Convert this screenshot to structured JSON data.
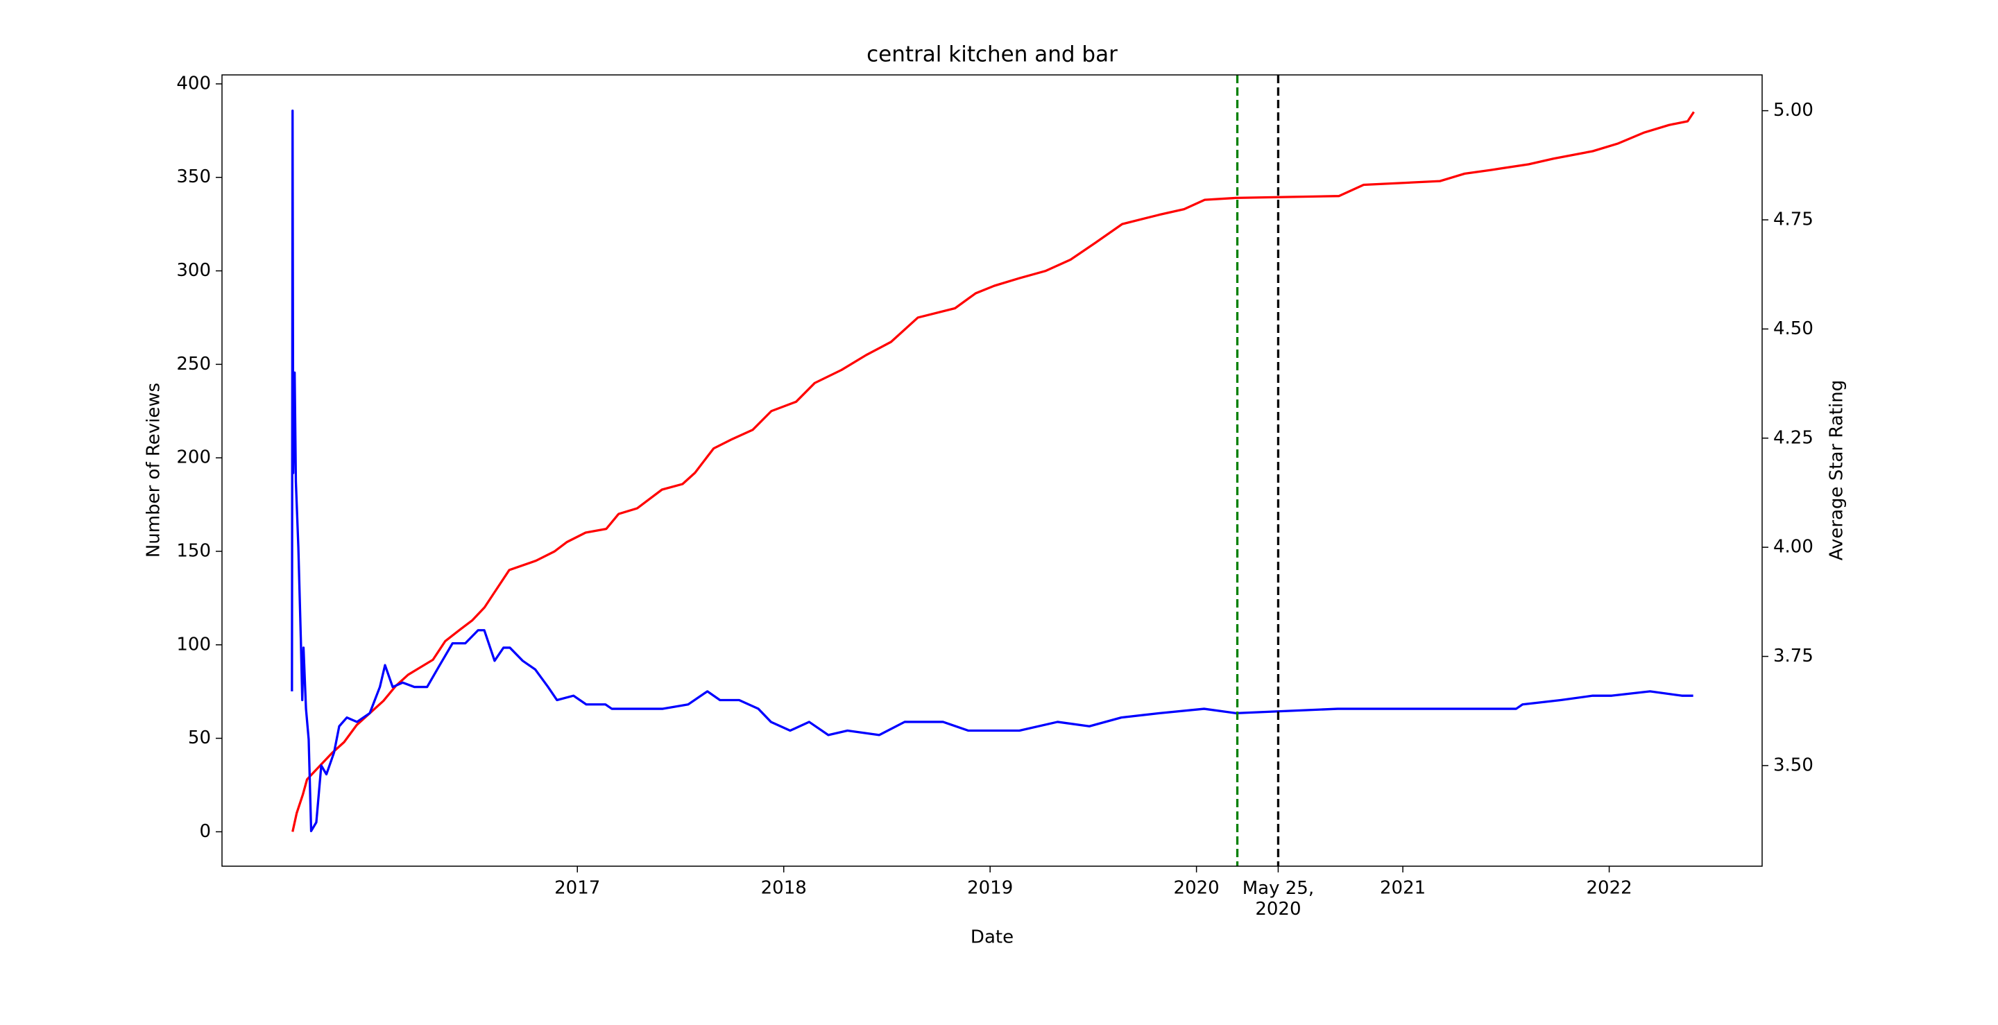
{
  "chart_data": {
    "type": "line",
    "title": "central kitchen and bar",
    "xlabel": "Date",
    "ylabel": "Number of Reviews",
    "y2label": "Average Star Rating",
    "xlim": [
      2015.278,
      2022.741
    ],
    "ylim": [
      -18.4,
      404.8
    ],
    "y2lim": [
      3.2695,
      5.082
    ],
    "xticks": [
      2017,
      2018,
      2019,
      2020,
      {
        "value": 2020.396,
        "label": "May 25,\n2020"
      },
      2021,
      2022
    ],
    "yticks": [
      0,
      50,
      100,
      150,
      200,
      250,
      300,
      350,
      400
    ],
    "y2ticks": [
      {
        "value": 3.5,
        "label": "3.50"
      },
      3.75,
      {
        "value": 4.0,
        "label": "4.00"
      },
      4.25,
      {
        "value": 4.5,
        "label": "4.50"
      },
      4.75,
      {
        "value": 5.0,
        "label": "5.00"
      }
    ],
    "ylabel_color": "#ff0000",
    "y2label_color": "#0000ff",
    "vlines": [
      {
        "x": 2020.198,
        "color": "#008000",
        "style": "dashed"
      },
      {
        "x": 2020.396,
        "color": "#000000",
        "style": "dashed"
      }
    ],
    "series": [
      {
        "color": "#ff0000",
        "x": [
          2015.62,
          2015.64,
          2015.67,
          2015.69,
          2015.75,
          2015.81,
          2015.87,
          2015.93,
          2015.99,
          2016.06,
          2016.12,
          2016.18,
          2016.24,
          2016.3,
          2016.36,
          2016.43,
          2016.49,
          2016.55,
          2016.61,
          2016.67,
          2016.8,
          2016.89,
          2016.95,
          2017.04,
          2017.14,
          2017.2,
          2017.29,
          2017.35,
          2017.41,
          2017.51,
          2017.57,
          2017.66,
          2017.75,
          2017.85,
          2017.94,
          2018.06,
          2018.15,
          2018.28,
          2018.4,
          2018.52,
          2018.65,
          2018.83,
          2018.93,
          2019.02,
          2019.14,
          2019.27,
          2019.39,
          2019.51,
          2019.64,
          2019.82,
          2019.94,
          2020.04,
          2020.19,
          2020.69,
          2020.81,
          2021.18,
          2021.3,
          2021.43,
          2021.61,
          2021.73,
          2021.92,
          2022.04,
          2022.17,
          2022.29,
          2022.38,
          2022.41
        ],
        "values": [
          0,
          10,
          20,
          28,
          35,
          42,
          48,
          57,
          63,
          70,
          78,
          84,
          88,
          92,
          102,
          108,
          113,
          120,
          130,
          140,
          145,
          150,
          155,
          160,
          162,
          170,
          173,
          178,
          183,
          186,
          192,
          205,
          210,
          215,
          225,
          230,
          240,
          247,
          255,
          262,
          275,
          280,
          288,
          292,
          296,
          300,
          306,
          315,
          325,
          330,
          333,
          338,
          339,
          340,
          346,
          348,
          352,
          354,
          357,
          360,
          364,
          368,
          374,
          378,
          380,
          385
        ]
      },
      {
        "color": "#0000ff",
        "axis": "y2",
        "x": [
          2015.617,
          2015.62,
          2015.623,
          2015.63,
          2015.636,
          2015.648,
          2015.66,
          2015.667,
          2015.673,
          2015.685,
          2015.698,
          2015.71,
          2015.735,
          2015.759,
          2015.784,
          2015.821,
          2015.846,
          2015.883,
          2015.932,
          2015.994,
          2016.043,
          2016.068,
          2016.105,
          2016.154,
          2016.21,
          2016.272,
          2016.333,
          2016.395,
          2016.457,
          2016.519,
          2016.549,
          2016.599,
          2016.642,
          2016.673,
          2016.735,
          2016.796,
          2016.858,
          2016.901,
          2016.981,
          2017.043,
          2017.136,
          2017.167,
          2017.29,
          2017.414,
          2017.537,
          2017.63,
          2017.691,
          2017.784,
          2017.877,
          2017.938,
          2018.031,
          2018.123,
          2018.216,
          2018.309,
          2018.463,
          2018.586,
          2018.772,
          2018.895,
          2019.142,
          2019.327,
          2019.481,
          2019.636,
          2019.821,
          2020.037,
          2020.191,
          2020.685,
          2021.549,
          2021.58,
          2021.765,
          2021.92,
          2022.012,
          2022.198,
          2022.352,
          2022.407
        ],
        "values": [
          3.67,
          5.0,
          4.17,
          4.4,
          4.15,
          4.0,
          3.79,
          3.65,
          3.77,
          3.63,
          3.56,
          3.35,
          3.37,
          3.5,
          3.48,
          3.53,
          3.59,
          3.61,
          3.6,
          3.62,
          3.68,
          3.73,
          3.68,
          3.69,
          3.68,
          3.68,
          3.73,
          3.78,
          3.78,
          3.81,
          3.81,
          3.74,
          3.77,
          3.77,
          3.74,
          3.72,
          3.68,
          3.65,
          3.66,
          3.64,
          3.64,
          3.63,
          3.63,
          3.63,
          3.64,
          3.67,
          3.65,
          3.65,
          3.63,
          3.6,
          3.58,
          3.6,
          3.57,
          3.58,
          3.57,
          3.6,
          3.6,
          3.58,
          3.58,
          3.6,
          3.59,
          3.61,
          3.62,
          3.63,
          3.62,
          3.63,
          3.63,
          3.64,
          3.65,
          3.66,
          3.66,
          3.67,
          3.66,
          3.66
        ]
      }
    ]
  }
}
